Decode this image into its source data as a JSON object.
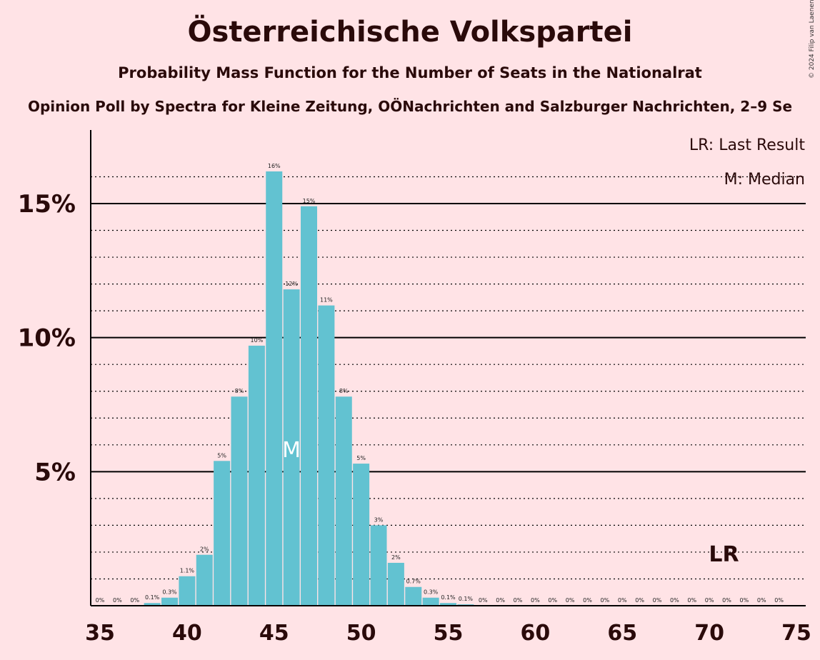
{
  "title": "Österreichische Volkspartei",
  "subtitle": "Probability Mass Function for the Number of Seats in the Nationalrat",
  "poll": "Opinion Poll by Spectra for Kleine Zeitung, OÖNachrichten and Salzburger Nachrichten, 2–9 Se",
  "copyright": "© 2024 Filip van Laenen",
  "legend": {
    "lr": "LR: Last Result",
    "median": "M: Median"
  },
  "colors": {
    "bar": "#62c2d1",
    "background": "#ffe3e6",
    "text": "#2a0a0a"
  },
  "chart_data": {
    "type": "bar",
    "x": [
      35,
      36,
      37,
      38,
      39,
      40,
      41,
      42,
      43,
      44,
      45,
      46,
      47,
      48,
      49,
      50,
      51,
      52,
      53,
      54,
      55,
      56,
      57,
      58,
      59,
      60,
      61,
      62,
      63,
      64,
      65,
      66,
      67,
      68,
      69,
      70,
      71,
      72,
      73,
      74,
      75
    ],
    "values": [
      0,
      0,
      0,
      0.1,
      0.3,
      1.1,
      1.9,
      5.4,
      7.8,
      9.7,
      16.2,
      11.8,
      14.9,
      11.2,
      7.8,
      5.3,
      3.0,
      1.6,
      0.7,
      0.3,
      0.1,
      0.05,
      0,
      0,
      0,
      0,
      0,
      0,
      0,
      0,
      0,
      0,
      0,
      0,
      0,
      0,
      0,
      0,
      0,
      0,
      0
    ],
    "labels": [
      "0%",
      "0%",
      "0%",
      "0.1%",
      "0.3%",
      "1.1%",
      "2%",
      "5%",
      "8%",
      "10%",
      "16%",
      "12%",
      "15%",
      "11%",
      "8%",
      "5%",
      "3%",
      "2%",
      "0.7%",
      "0.3%",
      "0.1%",
      "0.1%",
      "0%",
      "0%",
      "0%",
      "0%",
      "0%",
      "0%",
      "0%",
      "0%",
      "0%",
      "0%",
      "0%",
      "0%",
      "0%",
      "0%",
      "0%",
      "0%",
      "0%",
      "0%",
      ""
    ],
    "x_ticks": [
      35,
      40,
      45,
      50,
      55,
      60,
      65,
      70,
      75
    ],
    "y_ticks": [
      {
        "value": 5,
        "label": "5%"
      },
      {
        "value": 10,
        "label": "10%"
      },
      {
        "value": 15,
        "label": "15%"
      }
    ],
    "ylim": [
      0,
      17.5
    ],
    "xlim": [
      35,
      75
    ],
    "median_seat": 46,
    "median_marker": "M",
    "last_result_seat": 71,
    "last_result_marker": "LR",
    "xlabel": "",
    "ylabel": ""
  }
}
